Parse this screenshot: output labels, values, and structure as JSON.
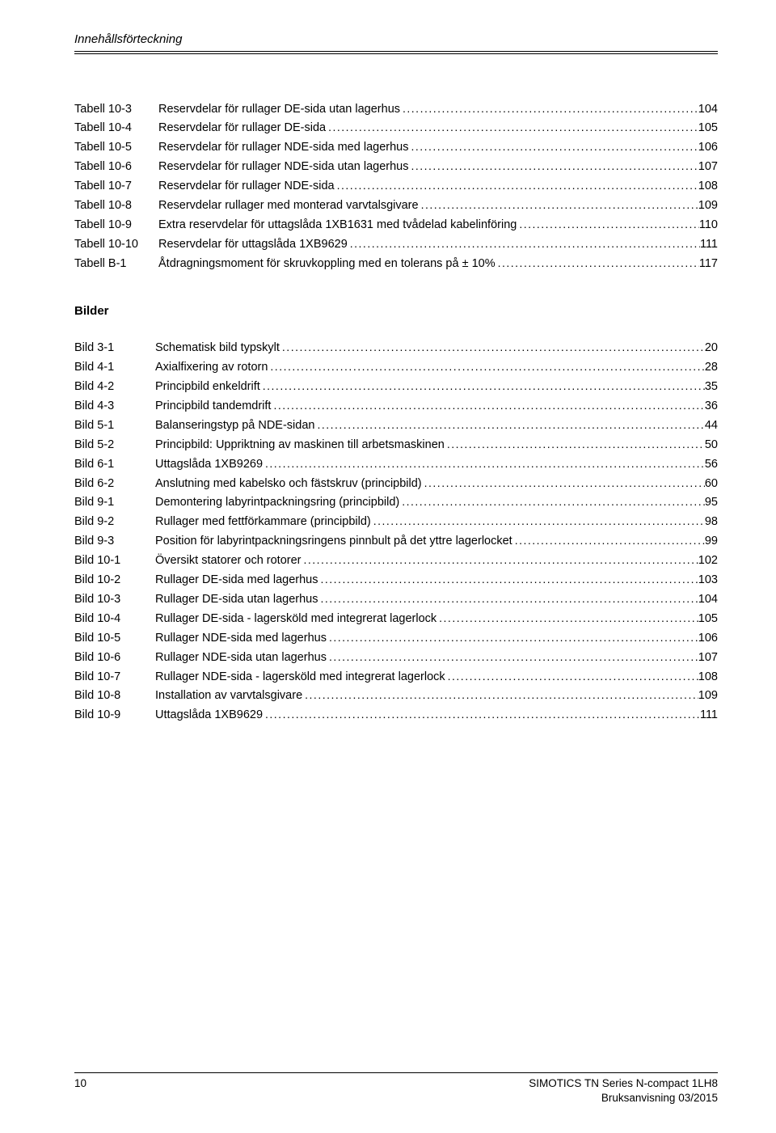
{
  "header": {
    "title": "Innehållsförteckning"
  },
  "toc1": [
    {
      "key": "Tabell 10-3",
      "title": "Reservdelar för rullager DE-sida utan lagerhus",
      "page": "104"
    },
    {
      "key": "Tabell 10-4",
      "title": "Reservdelar för rullager DE-sida",
      "page": "105"
    },
    {
      "key": "Tabell 10-5",
      "title": "Reservdelar för rullager NDE-sida med lagerhus",
      "page": "106"
    },
    {
      "key": "Tabell 10-6",
      "title": "Reservdelar för rullager NDE-sida utan lagerhus",
      "page": "107"
    },
    {
      "key": "Tabell 10-7",
      "title": "Reservdelar för rullager NDE-sida",
      "page": "108"
    },
    {
      "key": "Tabell 10-8",
      "title": "Reservdelar rullager med monterad varvtalsgivare",
      "page": "109"
    },
    {
      "key": "Tabell 10-9",
      "title": "Extra reservdelar för uttagslåda 1XB1631 med tvådelad kabelinföring",
      "page": "110"
    },
    {
      "key": "Tabell 10-10",
      "title": "Reservdelar för uttagslåda 1XB9629 ",
      "page": "111"
    },
    {
      "key": "Tabell B-1",
      "title": "Åtdragningsmoment för skruvkoppling med en tolerans på ± 10%",
      "page": "117"
    }
  ],
  "section2": {
    "heading": "Bilder"
  },
  "toc2": [
    {
      "key": "Bild 3-1",
      "title": "Schematisk bild typskylt ",
      "page": "20"
    },
    {
      "key": "Bild 4-1",
      "title": "Axialfixering av rotorn",
      "page": "28"
    },
    {
      "key": "Bild 4-2",
      "title": "Principbild enkeldrift",
      "page": "35"
    },
    {
      "key": "Bild 4-3",
      "title": "Principbild tandemdrift",
      "page": "36"
    },
    {
      "key": "Bild 5-1",
      "title": "Balanseringstyp på NDE-sidan",
      "page": "44"
    },
    {
      "key": "Bild 5-2",
      "title": "Principbild: Uppriktning av maskinen till arbetsmaskinen",
      "page": "50"
    },
    {
      "key": "Bild 6-1",
      "title": "Uttagslåda 1XB9269",
      "page": "56"
    },
    {
      "key": "Bild 6-2",
      "title": "Anslutning med kabelsko och fästskruv (principbild)",
      "page": "60"
    },
    {
      "key": "Bild 9-1",
      "title": "Demontering labyrintpackningsring (principbild)",
      "page": "95"
    },
    {
      "key": "Bild 9-2",
      "title": "Rullager med fettförkammare (principbild)",
      "page": "98"
    },
    {
      "key": "Bild 9-3",
      "title": "Position för labyrintpackningsringens pinnbult på det yttre lagerlocket",
      "page": "99"
    },
    {
      "key": "Bild 10-1",
      "title": "Översikt statorer och rotorer",
      "page": "102"
    },
    {
      "key": "Bild 10-2",
      "title": "Rullager DE-sida med lagerhus",
      "page": "103"
    },
    {
      "key": "Bild 10-3",
      "title": "Rullager DE-sida utan lagerhus",
      "page": "104"
    },
    {
      "key": "Bild 10-4",
      "title": "Rullager DE-sida - lagersköld med integrerat lagerlock",
      "page": "105"
    },
    {
      "key": "Bild 10-5",
      "title": "Rullager NDE-sida med lagerhus",
      "page": "106"
    },
    {
      "key": "Bild 10-6",
      "title": "Rullager NDE-sida utan lagerhus",
      "page": "107"
    },
    {
      "key": "Bild 10-7",
      "title": "Rullager NDE-sida - lagersköld med integrerat lagerlock",
      "page": "108"
    },
    {
      "key": "Bild 10-8",
      "title": "Installation av varvtalsgivare",
      "page": "109"
    },
    {
      "key": "Bild 10-9",
      "title": "Uttagslåda 1XB9629",
      "page": "111"
    }
  ],
  "footer": {
    "page_number": "10",
    "right1": "SIMOTICS TN Series N-compact 1LH8",
    "right2": "Bruksanvisning 03/2015"
  }
}
